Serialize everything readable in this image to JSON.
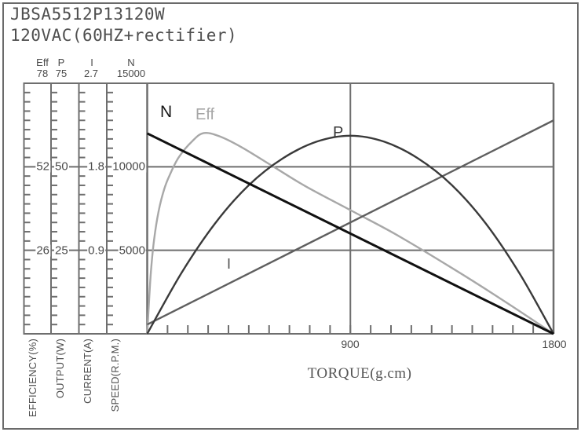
{
  "title": {
    "line1": "JBSA5512P13120W",
    "line2": "120VAC(60HZ+rectifier)"
  },
  "left_axes": [
    {
      "name": "Eff",
      "max_label": "78",
      "upper_label": "52",
      "lower_label": "26",
      "unit": "EFFICIENCY(%)"
    },
    {
      "name": "P",
      "max_label": "75",
      "upper_label": "50",
      "lower_label": "25",
      "unit": "OUTPUT(W)"
    },
    {
      "name": "I",
      "max_label": "2.7",
      "upper_label": "1.8",
      "lower_label": "0.9",
      "unit": "CURRENT(A)"
    },
    {
      "name": "N",
      "max_label": "15000",
      "upper_label": "10000",
      "lower_label": "5000",
      "unit": "SPEED(R.P.M.)"
    }
  ],
  "x_axis": {
    "title": "TORQUE(g.cm)",
    "mid_label": "900",
    "end_label": "1800"
  },
  "curve_labels": {
    "speed": "N",
    "efficiency": "Eff",
    "power": "P",
    "current": "I"
  },
  "colors": {
    "grid": "#6e6e6e",
    "frame": "#6a6a6a",
    "text": "#4a4a4a",
    "n_curve": "#111111",
    "eff_curve": "#a8a8a8",
    "p_curve": "#3a3a3a",
    "i_curve": "#5f5f5f"
  },
  "chart_data": {
    "type": "line",
    "title": "JBSA5512P13120W 120VAC(60HZ+rectifier)",
    "xlabel": "TORQUE(g.cm)",
    "x_range": [
      0,
      1800
    ],
    "x_tick_labels": [
      900,
      1800
    ],
    "x_minor_divisions": 20,
    "left_axis_minor_divisions": 27,
    "grid": "on",
    "series": [
      {
        "name": "Eff",
        "unit": "%",
        "axis_range": [
          0,
          78
        ],
        "axis_ticks": [
          26,
          52,
          78
        ],
        "color": "#a8a8a8",
        "x": [
          0,
          15,
          30,
          50,
          75,
          100,
          140,
          200,
          250,
          320,
          420,
          560,
          700,
          900,
          1100,
          1350,
          1575,
          1800
        ],
        "values": [
          0,
          18,
          29,
          38,
          45,
          49.5,
          55,
          60,
          62.5,
          61.5,
          58,
          52,
          46,
          38.5,
          31,
          20.5,
          10.5,
          0
        ]
      },
      {
        "name": "I",
        "unit": "A",
        "axis_range": [
          0,
          2.7
        ],
        "axis_ticks": [
          0.9,
          1.8,
          2.7
        ],
        "color": "#5f5f5f",
        "x": [
          0,
          1800
        ],
        "values": [
          0.1,
          2.3
        ]
      },
      {
        "name": "P",
        "unit": "W",
        "axis_range": [
          0,
          75
        ],
        "axis_ticks": [
          25,
          50,
          75
        ],
        "color": "#3a3a3a",
        "x": [
          0,
          150,
          300,
          450,
          600,
          750,
          900,
          1050,
          1200,
          1350,
          1500,
          1650,
          1800
        ],
        "values": [
          0,
          18,
          33,
          44.5,
          52.5,
          57.5,
          59.3,
          57.5,
          52.5,
          44.5,
          33,
          18,
          0
        ]
      },
      {
        "name": "N",
        "unit": "R.P.M.",
        "axis_range": [
          0,
          15000
        ],
        "axis_ticks": [
          5000,
          10000,
          15000
        ],
        "color": "#111111",
        "x": [
          0,
          1800
        ],
        "values": [
          12000,
          0
        ]
      }
    ]
  }
}
